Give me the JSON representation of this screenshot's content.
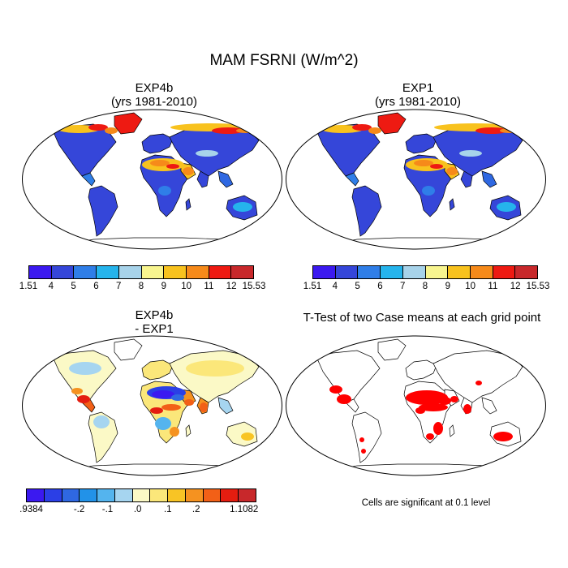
{
  "title": "MAM FSRNI (W/m^2)",
  "panels": {
    "tl": {
      "line1": "EXP4b",
      "line2": "(yrs 1981-2010)"
    },
    "tr": {
      "line1": "EXP1",
      "line2": "(yrs 1981-2010)"
    },
    "bl": {
      "line1": "EXP4b",
      "line2": "- EXP1"
    },
    "br": {
      "line1": "T-Test of two Case means at each grid point"
    }
  },
  "colorbars": {
    "mean": {
      "colors": [
        "#3b19f0",
        "#3546d9",
        "#2f7ee8",
        "#25b4ec",
        "#a7d3ea",
        "#f8f58f",
        "#f8c21e",
        "#f68a1a",
        "#ee1a12",
        "#c8282b"
      ],
      "labels": [
        "1.51",
        "4",
        "5",
        "6",
        "7",
        "8",
        "9",
        "10",
        "11",
        "12",
        "15.53"
      ]
    },
    "diff": {
      "colors": [
        "#3b19f0",
        "#2b3fe6",
        "#2f68e2",
        "#2292e8",
        "#54b4ee",
        "#a6d5f0",
        "#fbf9c6",
        "#fbe77a",
        "#f8c425",
        "#f59220",
        "#f26017",
        "#e41d10",
        "#c8282b"
      ],
      "labels": [
        ".9384",
        "-.2",
        "-.1",
        ".0",
        ".1",
        ".2",
        "1.1082"
      ]
    }
  },
  "significance_color": "#ff0000",
  "note": "Cells are significant at 0.1 level"
}
